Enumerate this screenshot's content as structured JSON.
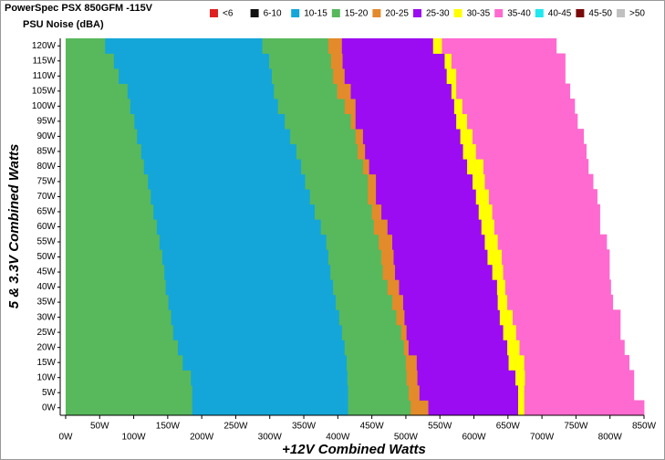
{
  "chart_data": {
    "type": "stacked-hbar",
    "title": "PowerSpec PSX 850GFM -115V",
    "subtitle": "PSU Noise (dBA)",
    "x_label": "+12V Combined Watts",
    "y_label": "5 & 3.3V Combined Watts",
    "categories": [
      "0W",
      "5W",
      "10W",
      "15W",
      "20W",
      "25W",
      "30W",
      "35W",
      "40W",
      "45W",
      "50W",
      "55W",
      "60W",
      "65W",
      "70W",
      "75W",
      "80W",
      "85W",
      "90W",
      "95W",
      "100W",
      "105W",
      "110W",
      "115W",
      "120W"
    ],
    "legend": [
      {
        "name": "<6",
        "color": "#e02020"
      },
      {
        "name": "6-10",
        "color": "#111111"
      },
      {
        "name": "10-15",
        "color": "#14a6d8"
      },
      {
        "name": "15-20",
        "color": "#58b85c"
      },
      {
        "name": "20-25",
        "color": "#e38a2a"
      },
      {
        "name": "25-30",
        "color": "#9b0cf2"
      },
      {
        "name": "30-35",
        "color": "#ffff00"
      },
      {
        "name": "35-40",
        "color": "#ff6ad0"
      },
      {
        "name": "40-45",
        "color": "#20e8f0"
      },
      {
        "name": "45-50",
        "color": "#7a0a0a"
      },
      {
        "name": ">50",
        "color": "#c0c0c0"
      }
    ],
    "series": [
      {
        "name": "15-20",
        "values": [
          186,
          186,
          184,
          172,
          165,
          158,
          155,
          151,
          147,
          145,
          142,
          138,
          134,
          129,
          125,
          121,
          115,
          111,
          105,
          101,
          95,
          91,
          78,
          71,
          58
        ]
      },
      {
        "name": "10-15",
        "values": [
          229,
          229,
          230,
          241,
          245,
          248,
          247,
          246,
          246,
          244,
          244,
          245,
          241,
          237,
          234,
          231,
          231,
          228,
          225,
          221,
          217,
          215,
          225,
          228,
          231
        ]
      },
      {
        "name": "15-20",
        "values": [
          92,
          89,
          87,
          87,
          87,
          87,
          84,
          83,
          80,
          77,
          78,
          77,
          78,
          84,
          85,
          92,
          91,
          90,
          96,
          97,
          98,
          93,
          90,
          91,
          97
        ]
      },
      {
        "name": "20-25",
        "values": [
          26,
          16,
          16,
          16,
          7,
          8,
          12,
          16,
          17,
          18,
          18,
          20,
          20,
          14,
          12,
          12,
          9,
          11,
          11,
          7,
          16,
          20,
          17,
          17,
          20
        ]
      },
      {
        "name": "25-30",
        "values": [
          132,
          145,
          144,
          135,
          145,
          142,
          140,
          139,
          144,
          143,
          138,
          136,
          138,
          143,
          147,
          142,
          144,
          144,
          143,
          148,
          145,
          148,
          150,
          150,
          134
        ]
      },
      {
        "name": "30-35",
        "values": [
          9,
          9,
          14,
          23,
          18,
          19,
          19,
          14,
          12,
          16,
          21,
          19,
          19,
          20,
          19,
          18,
          24,
          19,
          18,
          16,
          12,
          7,
          14,
          10,
          13
        ]
      },
      {
        "name": "35-40",
        "values": [
          176,
          161,
          160,
          154,
          154,
          153,
          158,
          155,
          155,
          156,
          158,
          160,
          155,
          158,
          159,
          159,
          154,
          162,
          163,
          162,
          165,
          167,
          160,
          167,
          168
        ]
      }
    ],
    "xlim": [
      -8,
      850
    ],
    "xticks": [
      {
        "value": 0,
        "label": "0W"
      },
      {
        "value": 50,
        "label": "50W"
      },
      {
        "value": 100,
        "label": "100W"
      },
      {
        "value": 150,
        "label": "150W"
      },
      {
        "value": 200,
        "label": "200W"
      },
      {
        "value": 250,
        "label": "250W"
      },
      {
        "value": 300,
        "label": "300W"
      },
      {
        "value": 350,
        "label": "350W"
      },
      {
        "value": 400,
        "label": "400W"
      },
      {
        "value": 450,
        "label": "450W"
      },
      {
        "value": 500,
        "label": "500W"
      },
      {
        "value": 550,
        "label": "550W"
      },
      {
        "value": 600,
        "label": "600W"
      },
      {
        "value": 650,
        "label": "650W"
      },
      {
        "value": 700,
        "label": "700W"
      },
      {
        "value": 750,
        "label": "750W"
      },
      {
        "value": 800,
        "label": "800W"
      },
      {
        "value": 850,
        "label": "850W"
      }
    ]
  }
}
